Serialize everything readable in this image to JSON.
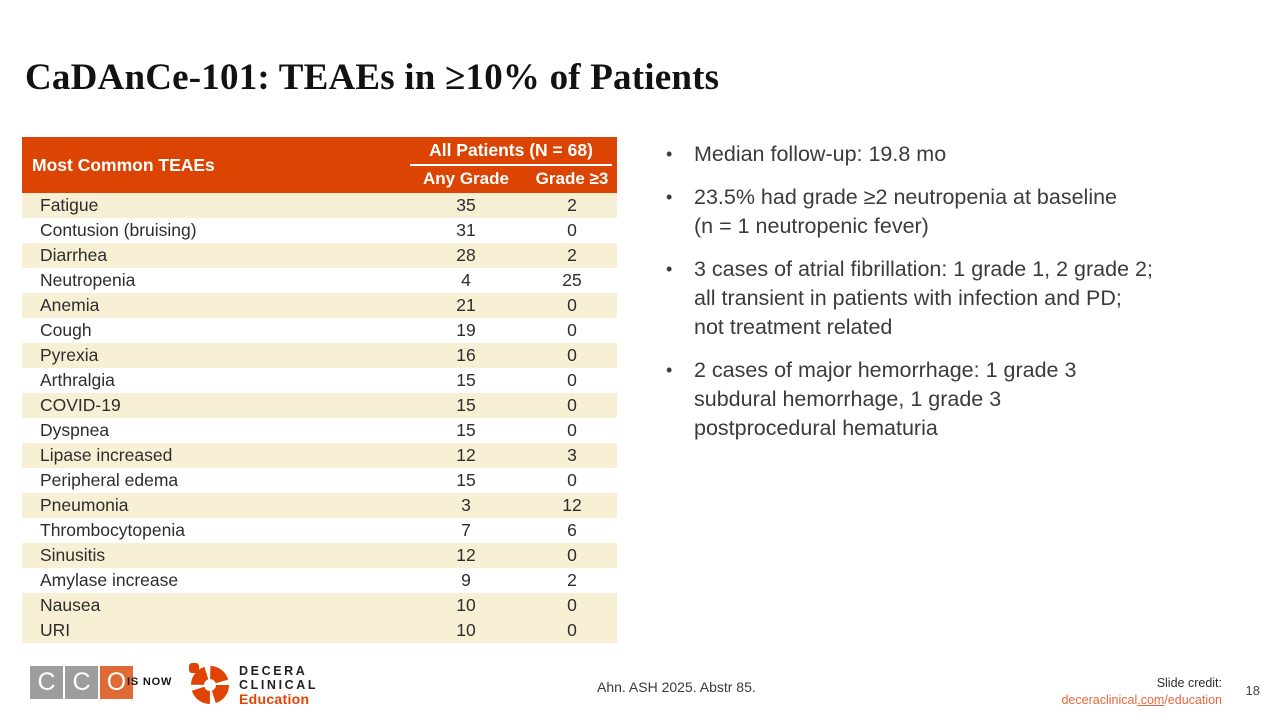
{
  "slide": {
    "title": "CaDAnCe-101: TEAEs in ≥10% of Patients",
    "page_number": "18"
  },
  "table": {
    "header": {
      "col1": "Most Common TEAEs",
      "group": "All Patients (N = 68)",
      "col2": "Any Grade",
      "col3": "Grade ≥3"
    },
    "rows": [
      {
        "teae": "Fatigue",
        "any_grade": "35",
        "grade3": "2"
      },
      {
        "teae": "Contusion (bruising)",
        "any_grade": "31",
        "grade3": "0"
      },
      {
        "teae": "Diarrhea",
        "any_grade": "28",
        "grade3": "2"
      },
      {
        "teae": "Neutropenia",
        "any_grade": "4",
        "grade3": "25"
      },
      {
        "teae": "Anemia",
        "any_grade": "21",
        "grade3": "0"
      },
      {
        "teae": "Cough",
        "any_grade": "19",
        "grade3": "0"
      },
      {
        "teae": "Pyrexia",
        "any_grade": "16",
        "grade3": "0"
      },
      {
        "teae": "Arthralgia",
        "any_grade": "15",
        "grade3": "0"
      },
      {
        "teae": "COVID-19",
        "any_grade": "15",
        "grade3": "0"
      },
      {
        "teae": "Dyspnea",
        "any_grade": "15",
        "grade3": "0"
      },
      {
        "teae": "Lipase increased",
        "any_grade": "12",
        "grade3": "3"
      },
      {
        "teae": "Peripheral edema",
        "any_grade": "15",
        "grade3": "0"
      },
      {
        "teae": "Pneumonia",
        "any_grade": "3",
        "grade3": "12"
      },
      {
        "teae": "Thrombocytopenia",
        "any_grade": "7",
        "grade3": "6"
      },
      {
        "teae": "Sinusitis",
        "any_grade": "12",
        "grade3": "0"
      },
      {
        "teae": "Amylase increase",
        "any_grade": "9",
        "grade3": "2"
      },
      {
        "teae": "Nausea",
        "any_grade": "10",
        "grade3": "0"
      },
      {
        "teae": "URI",
        "any_grade": "10",
        "grade3": "0"
      }
    ]
  },
  "bullets": [
    "Median follow-up: 19.8 mo",
    "23.5% had grade ≥2 neutropenia at baseline\n(n = 1 neutropenic fever)",
    "3 cases of atrial fibrillation: 1 grade 1, 2 grade 2;\nall transient in patients with infection and PD;\nnot treatment related",
    "2 cases of major hemorrhage: 1 grade 3\nsubdural hemorrhage, 1 grade 3\npostprocedural hematuria"
  ],
  "footer": {
    "cco_letters": [
      "C",
      "C",
      "O"
    ],
    "is_now": "IS NOW",
    "decera_line1": "DECERA",
    "decera_line2": "CLINICAL",
    "decera_line3": "Education",
    "citation": "Ahn. ASH 2025. Abstr 85.",
    "slide_credit_label": "Slide credit:",
    "link_prefix": "deceraclinical",
    "link_underlined": ".com",
    "link_suffix": "/education"
  },
  "colors": {
    "accent_orange": "#DB4403",
    "row_cream": "#F7F0D5",
    "link_orange": "#E8673C",
    "logo_gray": "#9D9D9D"
  }
}
